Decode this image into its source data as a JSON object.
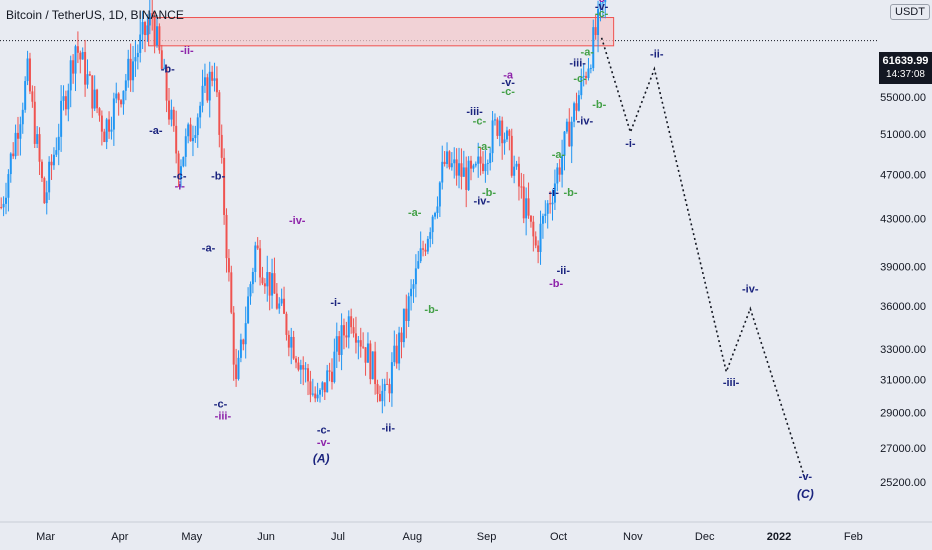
{
  "header": {
    "title": "Bitcoin / TetherUS, 1D, BINANCE",
    "currency_badge": "USDT"
  },
  "current_price": {
    "value": "61639.99",
    "countdown": "14:37:08"
  },
  "colors": {
    "background": "#e8ebf2",
    "bull_candle": "#2196f3",
    "bear_candle": "#ef5350",
    "resistance_fill": "#f4c9cc",
    "resistance_border": "#ef5350",
    "wave_navy": "#1a237e",
    "wave_purple": "#8e24aa",
    "wave_green": "#43a047",
    "projection": "#131722"
  },
  "chart_data": {
    "type": "candlestick",
    "symbol": "BTCUSDT",
    "interval": "1D",
    "exchange": "BINANCE",
    "x_range": [
      "2021-02-10",
      "2022-02-20"
    ],
    "y_range": [
      24000,
      63500
    ],
    "y_ticks": [
      "25200.00",
      "27000.00",
      "29000.00",
      "31000.00",
      "33000.00",
      "36000.00",
      "39000.00",
      "43000.00",
      "47000.00",
      "51000.00",
      "55000.00"
    ],
    "x_ticks": [
      {
        "date": "2021-03-01",
        "label": "Mar"
      },
      {
        "date": "2021-04-01",
        "label": "Apr"
      },
      {
        "date": "2021-05-01",
        "label": "May"
      },
      {
        "date": "2021-06-01",
        "label": "Jun"
      },
      {
        "date": "2021-07-01",
        "label": "Jul"
      },
      {
        "date": "2021-08-01",
        "label": "Aug"
      },
      {
        "date": "2021-09-01",
        "label": "Sep"
      },
      {
        "date": "2021-10-01",
        "label": "Oct"
      },
      {
        "date": "2021-11-01",
        "label": "Nov"
      },
      {
        "date": "2021-12-01",
        "label": "Dec"
      },
      {
        "date": "2022-01-01",
        "label": "2022"
      },
      {
        "date": "2022-02-01",
        "label": "Feb"
      }
    ],
    "price_path": [
      [
        "2021-02-10",
        44000
      ],
      [
        "2021-02-21",
        57500
      ],
      [
        "2021-02-28",
        44500
      ],
      [
        "2021-03-13",
        61200
      ],
      [
        "2021-03-25",
        51500
      ],
      [
        "2021-04-14",
        64800
      ],
      [
        "2021-04-25",
        48000
      ],
      [
        "2021-05-10",
        58500
      ],
      [
        "2021-05-19",
        30500
      ],
      [
        "2021-05-27",
        40500
      ],
      [
        "2021-06-22",
        29500
      ],
      [
        "2021-07-06",
        35500
      ],
      [
        "2021-07-20",
        29800
      ],
      [
        "2021-08-14",
        48000
      ],
      [
        "2021-08-26",
        46500
      ],
      [
        "2021-09-06",
        52800
      ],
      [
        "2021-09-21",
        40500
      ],
      [
        "2021-10-05",
        51500
      ],
      [
        "2021-10-20",
        67000
      ]
    ],
    "resistance_zone": {
      "from": "2021-04-13",
      "to": "2021-10-24",
      "low": 61000,
      "high": 64600
    },
    "current_price_line": 61639.99,
    "projection_path": [
      [
        "2021-10-19",
        62000
      ],
      [
        "2021-10-31",
        51200
      ],
      [
        "2021-11-10",
        58200
      ],
      [
        "2021-12-10",
        31500
      ],
      [
        "2021-12-20",
        35800
      ],
      [
        "2022-01-12",
        25300
      ]
    ],
    "wave_labels": [
      {
        "text": "(B)",
        "date": "2021-10-19",
        "price": 67500,
        "color": "navy",
        "italic": true
      },
      {
        "text": "-c-",
        "date": "2021-10-19",
        "price": 66700,
        "color": "purple"
      },
      {
        "text": "-v-",
        "date": "2021-10-19",
        "price": 65600,
        "color": "navy"
      },
      {
        "text": "-c-",
        "date": "2021-10-19",
        "price": 64700,
        "color": "green"
      },
      {
        "text": "-ii-",
        "date": "2021-04-29",
        "price": 60000,
        "color": "purple"
      },
      {
        "text": "-b-",
        "date": "2021-04-21",
        "price": 57800,
        "color": "navy"
      },
      {
        "text": "-a-",
        "date": "2021-04-16",
        "price": 51000,
        "color": "navy"
      },
      {
        "text": "-c-",
        "date": "2021-04-26",
        "price": 46500,
        "color": "navy"
      },
      {
        "text": "-i-",
        "date": "2021-04-26",
        "price": 45600,
        "color": "purple"
      },
      {
        "text": "-b-",
        "date": "2021-05-12",
        "price": 46500,
        "color": "navy"
      },
      {
        "text": "-a-",
        "date": "2021-05-08",
        "price": 40200,
        "color": "navy"
      },
      {
        "text": "-iv-",
        "date": "2021-06-14",
        "price": 42500,
        "color": "purple"
      },
      {
        "text": "-c-",
        "date": "2021-05-13",
        "price": 29300,
        "color": "navy"
      },
      {
        "text": "-iii-",
        "date": "2021-05-14",
        "price": 28600,
        "color": "purple"
      },
      {
        "text": "-i-",
        "date": "2021-06-30",
        "price": 36000,
        "color": "navy"
      },
      {
        "text": "-c-",
        "date": "2021-06-25",
        "price": 27800,
        "color": "navy"
      },
      {
        "text": "-v-",
        "date": "2021-06-25",
        "price": 27100,
        "color": "purple"
      },
      {
        "text": "(A)",
        "date": "2021-06-24",
        "price": 26200,
        "color": "navy",
        "italic": true
      },
      {
        "text": "-ii-",
        "date": "2021-07-22",
        "price": 27900,
        "color": "navy"
      },
      {
        "text": "-a-",
        "date": "2021-08-02",
        "price": 43200,
        "color": "green"
      },
      {
        "text": "-b-",
        "date": "2021-08-09",
        "price": 35500,
        "color": "green"
      },
      {
        "text": "-iii-",
        "date": "2021-08-27",
        "price": 53000,
        "color": "navy"
      },
      {
        "text": "-c-",
        "date": "2021-08-29",
        "price": 52000,
        "color": "green"
      },
      {
        "text": "-a-",
        "date": "2021-08-31",
        "price": 49400,
        "color": "green"
      },
      {
        "text": "-b-",
        "date": "2021-09-02",
        "price": 45000,
        "color": "green"
      },
      {
        "text": "-iv-",
        "date": "2021-08-30",
        "price": 44200,
        "color": "navy"
      },
      {
        "text": "-a",
        "date": "2021-09-10",
        "price": 57100,
        "color": "purple"
      },
      {
        "text": "-v-",
        "date": "2021-09-10",
        "price": 56200,
        "color": "navy"
      },
      {
        "text": "-c-",
        "date": "2021-09-10",
        "price": 55200,
        "color": "green"
      },
      {
        "text": "-i-",
        "date": "2021-09-29",
        "price": 45000,
        "color": "navy"
      },
      {
        "text": "-ii-",
        "date": "2021-10-03",
        "price": 38400,
        "color": "navy"
      },
      {
        "text": "-b-",
        "date": "2021-09-30",
        "price": 37400,
        "color": "purple"
      },
      {
        "text": "-a-",
        "date": "2021-10-01",
        "price": 48600,
        "color": "green"
      },
      {
        "text": "-b-",
        "date": "2021-10-06",
        "price": 45000,
        "color": "green"
      },
      {
        "text": "-iii-",
        "date": "2021-10-09",
        "price": 58500,
        "color": "navy"
      },
      {
        "text": "-c-",
        "date": "2021-10-10",
        "price": 56700,
        "color": "green"
      },
      {
        "text": "-a-",
        "date": "2021-10-13",
        "price": 59800,
        "color": "green"
      },
      {
        "text": "-b-",
        "date": "2021-10-18",
        "price": 53800,
        "color": "green"
      },
      {
        "text": "-iv-",
        "date": "2021-10-12",
        "price": 52000,
        "color": "navy"
      },
      {
        "text": "-i-",
        "date": "2021-10-31",
        "price": 49700,
        "color": "navy"
      },
      {
        "text": "-ii-",
        "date": "2021-11-11",
        "price": 59600,
        "color": "navy"
      },
      {
        "text": "-iii-",
        "date": "2021-12-12",
        "price": 30600,
        "color": "navy"
      },
      {
        "text": "-iv-",
        "date": "2021-12-20",
        "price": 37000,
        "color": "navy"
      },
      {
        "text": "-v-",
        "date": "2022-01-12",
        "price": 25300,
        "color": "navy"
      },
      {
        "text": "(C)",
        "date": "2022-01-12",
        "price": 24400,
        "color": "navy",
        "italic": true
      }
    ]
  }
}
